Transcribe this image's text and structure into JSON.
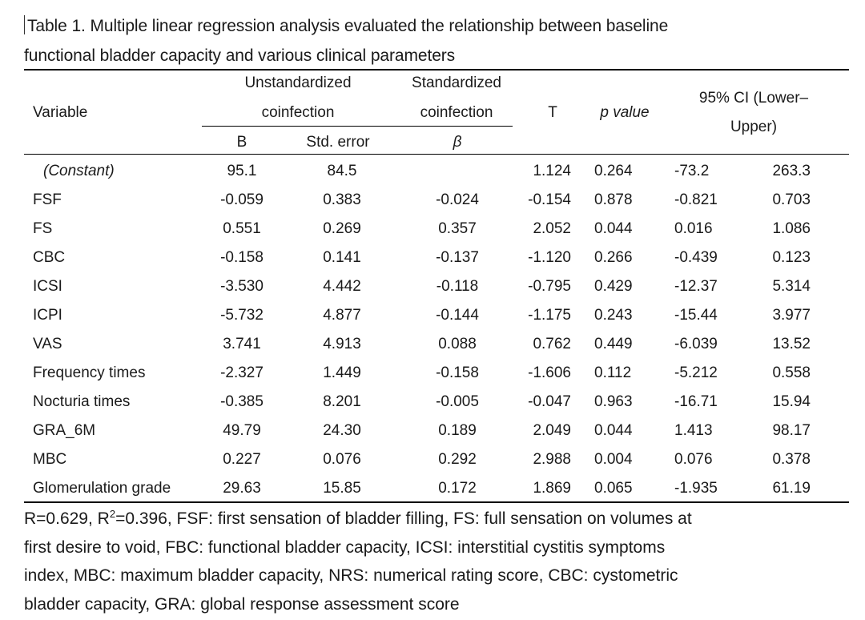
{
  "caption": {
    "line1": "Table 1. Multiple linear regression analysis evaluated the relationship between baseline",
    "line2": "functional bladder capacity and various clinical parameters"
  },
  "header": {
    "variable": "Variable",
    "unstd_line1": "Unstandardized",
    "unstd_line2": "coinfection",
    "std_line1": "Standardized",
    "std_line2": "coinfection",
    "t": "T",
    "p": "p value",
    "ci_line1": "95% CI (Lower–",
    "ci_line2": "Upper)",
    "b": "B",
    "se": "Std. error",
    "beta": "β"
  },
  "rows": [
    {
      "variable": "(Constant)",
      "b": "95.1",
      "se": "84.5",
      "beta": "",
      "t": "1.124",
      "p": "0.264",
      "lower": "-73.2",
      "upper": "263.3"
    },
    {
      "variable": "FSF",
      "b": "-0.059",
      "se": "0.383",
      "beta": "-0.024",
      "t": "-0.154",
      "p": "0.878",
      "lower": "-0.821",
      "upper": "0.703"
    },
    {
      "variable": "FS",
      "b": "0.551",
      "se": "0.269",
      "beta": "0.357",
      "t": "2.052",
      "p": "0.044",
      "lower": "0.016",
      "upper": "1.086"
    },
    {
      "variable": "CBC",
      "b": "-0.158",
      "se": "0.141",
      "beta": "-0.137",
      "t": "-1.120",
      "p": "0.266",
      "lower": "-0.439",
      "upper": "0.123"
    },
    {
      "variable": "ICSI",
      "b": "-3.530",
      "se": "4.442",
      "beta": "-0.118",
      "t": "-0.795",
      "p": "0.429",
      "lower": "-12.37",
      "upper": "5.314"
    },
    {
      "variable": "ICPI",
      "b": "-5.732",
      "se": "4.877",
      "beta": "-0.144",
      "t": "-1.175",
      "p": "0.243",
      "lower": "-15.44",
      "upper": "3.977"
    },
    {
      "variable": "VAS",
      "b": "3.741",
      "se": "4.913",
      "beta": "0.088",
      "t": "0.762",
      "p": "0.449",
      "lower": "-6.039",
      "upper": "13.52"
    },
    {
      "variable": "Frequency times",
      "b": "-2.327",
      "se": "1.449",
      "beta": "-0.158",
      "t": "-1.606",
      "p": "0.112",
      "lower": "-5.212",
      "upper": "0.558"
    },
    {
      "variable": "Nocturia times",
      "b": "-0.385",
      "se": "8.201",
      "beta": "-0.005",
      "t": "-0.047",
      "p": "0.963",
      "lower": "-16.71",
      "upper": "15.94"
    },
    {
      "variable": "GRA_6M",
      "b": "49.79",
      "se": "24.30",
      "beta": "0.189",
      "t": "2.049",
      "p": "0.044",
      "lower": "1.413",
      "upper": "98.17"
    },
    {
      "variable": "MBC",
      "b": "0.227",
      "se": "0.076",
      "beta": "0.292",
      "t": "2.988",
      "p": "0.004",
      "lower": "0.076",
      "upper": "0.378"
    },
    {
      "variable": "Glomerulation grade",
      "b": "29.63",
      "se": "15.85",
      "beta": "0.172",
      "t": "1.869",
      "p": "0.065",
      "lower": "-1.935",
      "upper": "61.19"
    }
  ],
  "notes": {
    "r_prefix": "R=0.629, R",
    "r_sup": "2",
    "line1_rest": "=0.396, FSF: first sensation of bladder filling, FS: full sensation on volumes at",
    "line2": "first desire to void, FBC: functional bladder capacity, ICSI: interstitial cystitis symptoms",
    "line3": "index, MBC: maximum bladder capacity, NRS: numerical rating score, CBC: cystometric",
    "line4": "bladder capacity, GRA: global response assessment score"
  }
}
